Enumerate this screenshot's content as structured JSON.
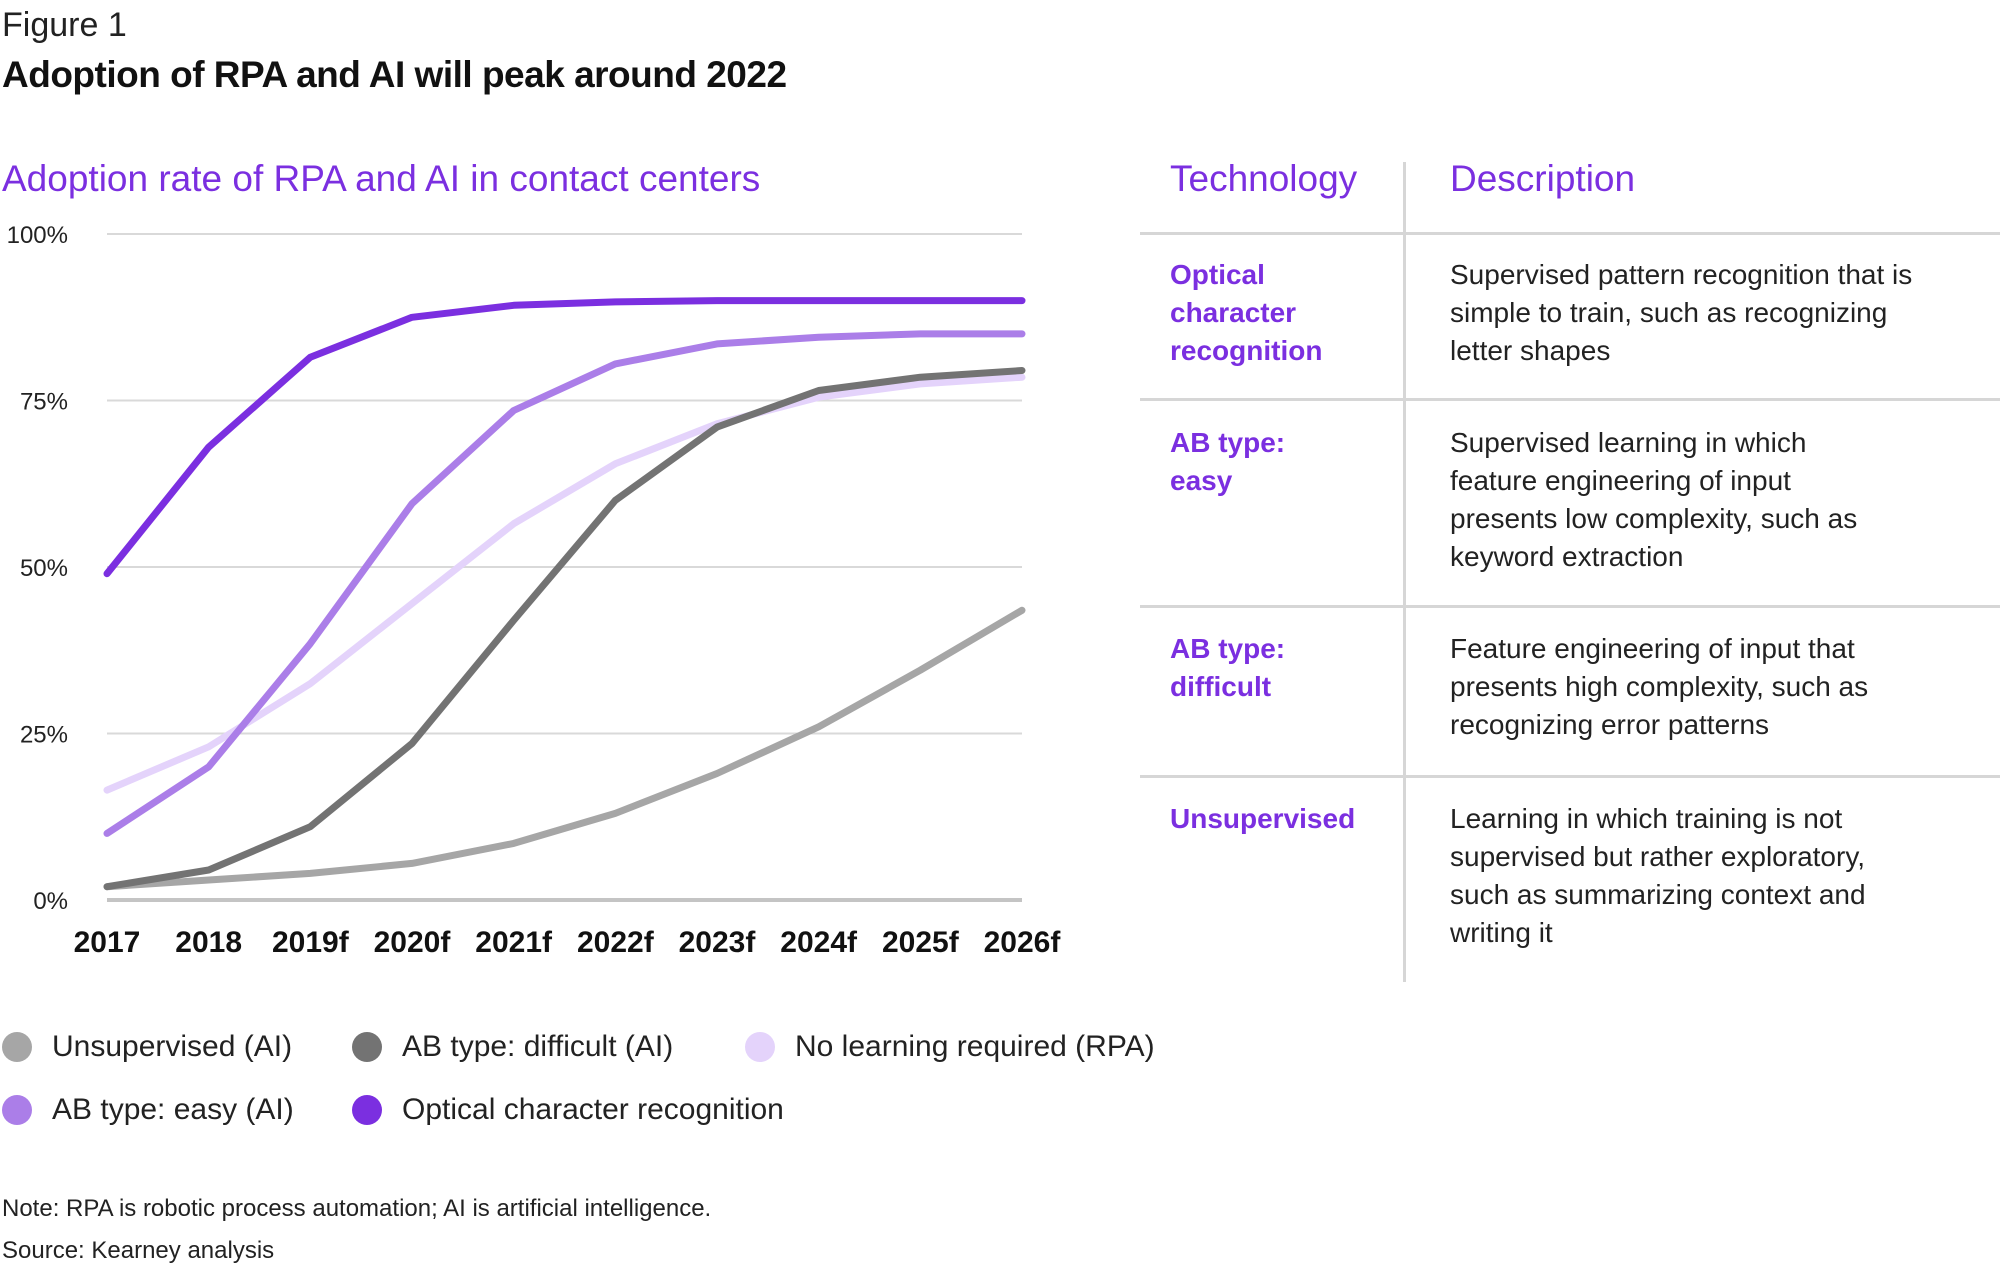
{
  "figure_label": "Figure 1",
  "figure_title": "Adoption of RPA and AI will peak around 2022",
  "chart_subtitle": "Adoption rate of RPA and AI in contact centers",
  "table": {
    "col_technology": "Technology",
    "col_description": "Description",
    "rows": [
      {
        "tech_lines": [
          "Optical",
          "character",
          "recognition"
        ],
        "desc_lines": [
          "Supervised pattern recognition that is",
          "simple to train, such as recognizing",
          "letter shapes"
        ]
      },
      {
        "tech_lines": [
          "AB type:",
          "easy"
        ],
        "desc_lines": [
          "Supervised learning in which",
          "feature engineering of input",
          "presents low complexity, such as",
          "keyword extraction"
        ]
      },
      {
        "tech_lines": [
          "AB type:",
          "difficult"
        ],
        "desc_lines": [
          "Feature engineering of input that",
          "presents high complexity, such as",
          "recognizing error patterns"
        ]
      },
      {
        "tech_lines": [
          "Unsupervised"
        ],
        "desc_lines": [
          "Learning in which training is not",
          "supervised but rather exploratory,",
          "such as summarizing context and",
          "writing it"
        ]
      }
    ]
  },
  "legend": [
    {
      "label": "Unsupervised (AI)",
      "color": "#a6a6a6"
    },
    {
      "label": "AB type: difficult (AI)",
      "color": "#737373"
    },
    {
      "label": "No learning required (RPA)",
      "color": "#e4d3fb"
    },
    {
      "label": "AB type: easy (AI)",
      "color": "#ab7ee8"
    },
    {
      "label": "Optical character recognition",
      "color": "#7b2fe0"
    }
  ],
  "notes": {
    "note": "Note: RPA is robotic process automation; AI is artificial intelligence.",
    "source": "Source: Kearney analysis"
  },
  "chart_data": {
    "type": "line",
    "title": "Adoption rate of RPA and AI in contact centers",
    "xlabel": "",
    "ylabel": "",
    "ylim": [
      0,
      100
    ],
    "y_ticks": [
      "0%",
      "25%",
      "50%",
      "75%",
      "100%"
    ],
    "grid": true,
    "legend_position": "bottom",
    "categories": [
      "2017",
      "2018",
      "2019f",
      "2020f",
      "2021f",
      "2022f",
      "2023f",
      "2024f",
      "2025f",
      "2026f"
    ],
    "series": [
      {
        "name": "Unsupervised (AI)",
        "color": "#a6a6a6",
        "values": [
          2,
          3,
          4,
          5.5,
          8.5,
          13,
          19,
          26,
          34.5,
          43.5
        ]
      },
      {
        "name": "No learning required (RPA)",
        "color": "#e4d3fb",
        "values": [
          16.5,
          23,
          32.5,
          44.5,
          56.5,
          65.5,
          71.5,
          75.5,
          77.5,
          78.5
        ]
      },
      {
        "name": "AB type: difficult (AI)",
        "color": "#737373",
        "values": [
          2,
          4.5,
          11,
          23.5,
          42,
          60,
          71,
          76.5,
          78.5,
          79.5
        ]
      },
      {
        "name": "AB type: easy (AI)",
        "color": "#ab7ee8",
        "values": [
          10,
          20,
          38.5,
          59.5,
          73.5,
          80.5,
          83.5,
          84.5,
          85,
          85
        ]
      },
      {
        "name": "Optical character recognition",
        "color": "#7b2fe0",
        "values": [
          49,
          68,
          81.5,
          87.5,
          89.3,
          89.8,
          90,
          90,
          90,
          90
        ]
      }
    ]
  }
}
